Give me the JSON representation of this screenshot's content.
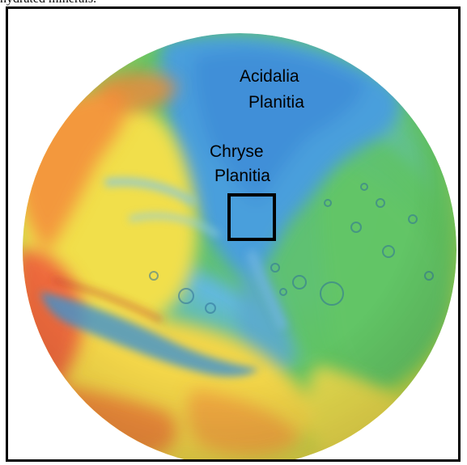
{
  "caption": {
    "fragment": "hydrated minerals."
  },
  "map": {
    "labels": {
      "acidalia_line1": "Acidalia",
      "acidalia_line2": "Planitia",
      "chryse_line1": "Chryse",
      "chryse_line2": "Planitia"
    },
    "colors": {
      "lowland_blue": "#4aa3de",
      "mid_green": "#55c35a",
      "mid_yellow": "#f2e24a",
      "high_orange": "#f39a3b",
      "high_red": "#e2453f",
      "box_outline": "#000000",
      "frame_outline": "#000000"
    }
  }
}
